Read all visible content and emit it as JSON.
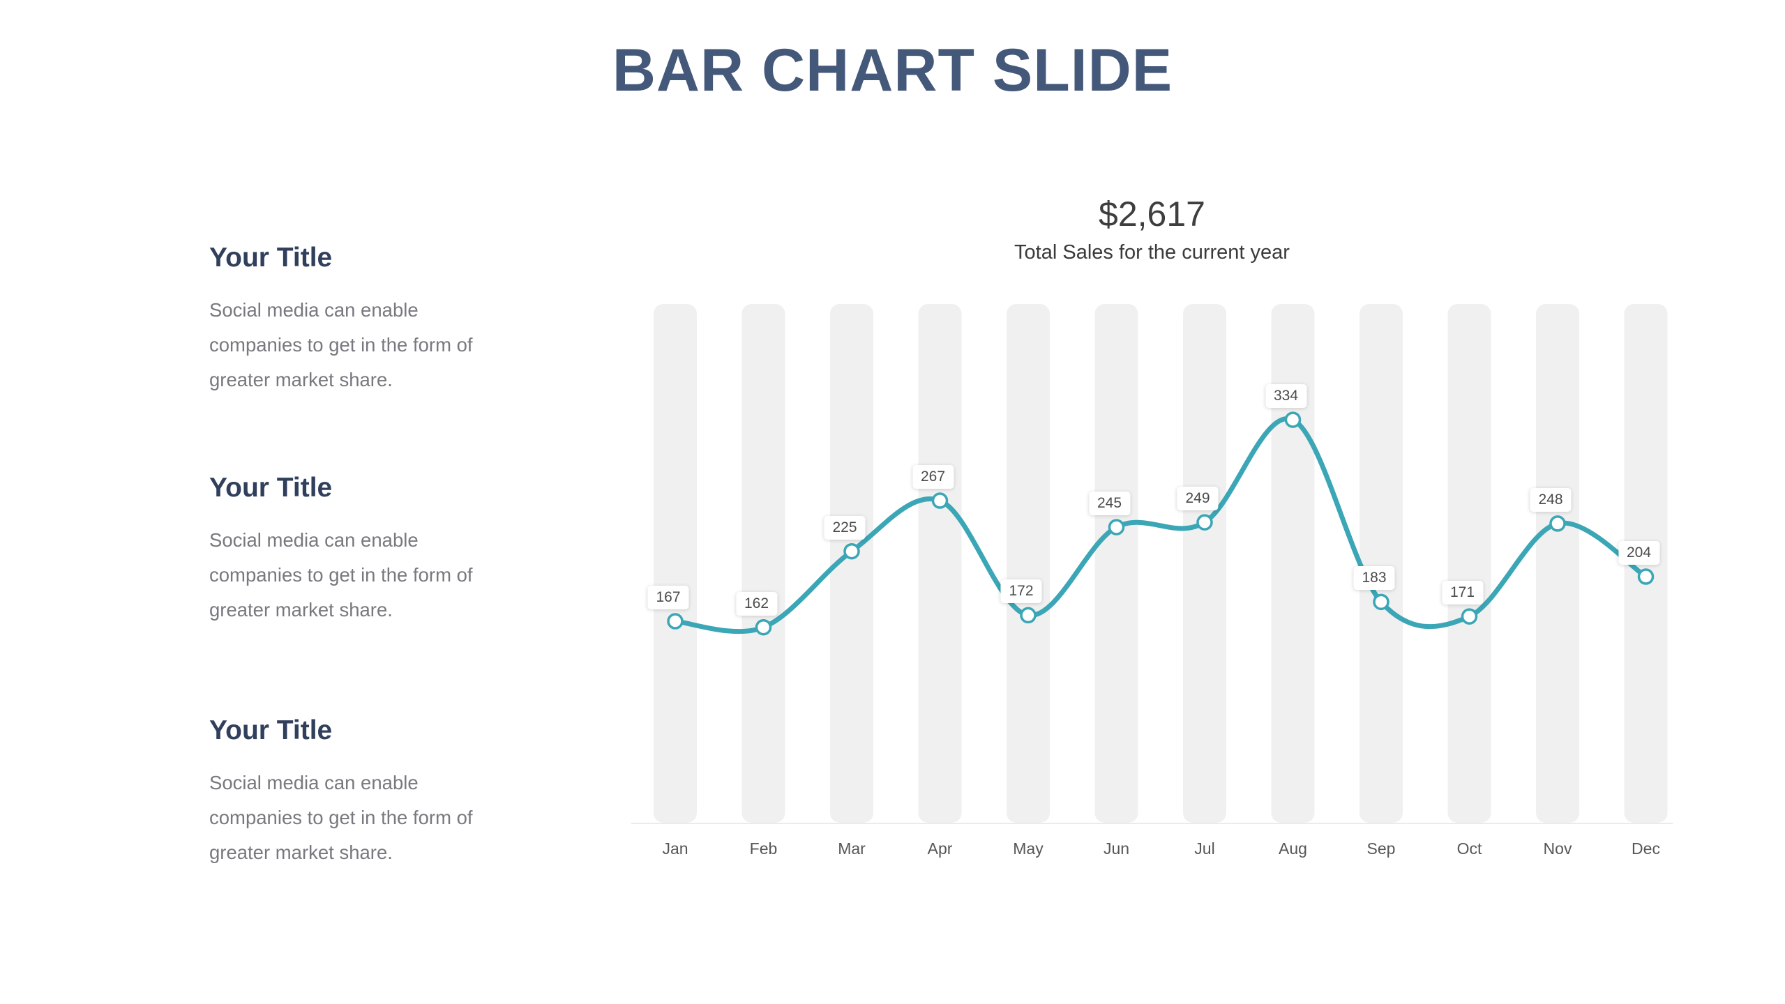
{
  "slide": {
    "title": "BAR CHART SLIDE"
  },
  "sections": [
    {
      "heading": "Your Title",
      "body": "Social media can enable companies to get in the form of greater market share."
    },
    {
      "heading": "Your Title",
      "body": "Social media can enable companies to get in the form of greater market share."
    },
    {
      "heading": "Your Title",
      "body": "Social media can enable companies to get in the form of greater market share."
    }
  ],
  "chart_data": {
    "type": "line",
    "total_label": "$2,617",
    "subtitle": "Total Sales for the current year",
    "categories": [
      "Jan",
      "Feb",
      "Mar",
      "Apr",
      "May",
      "Jun",
      "Jul",
      "Aug",
      "Sep",
      "Oct",
      "Nov",
      "Dec"
    ],
    "values": [
      167,
      162,
      225,
      267,
      172,
      245,
      249,
      334,
      183,
      171,
      248,
      204
    ],
    "ylim": [
      0,
      430
    ],
    "grid": false,
    "legend": false,
    "background_columns": true,
    "data_labels": true,
    "marker": "circle-open"
  },
  "colors": {
    "title_navy": "#44587A",
    "heading_navy": "#303F5B",
    "body_gray": "#77797F",
    "total_dark": "#3E3E3E",
    "subtitle_dark": "#3A3A3A",
    "month_gray": "#565656",
    "value_label_gray": "#4A4A4A",
    "line_teal": "#3AA6B6",
    "marker_fill": "#FFFFFF",
    "bar_gray": "#F0F0F0",
    "axis_gray": "#EBEBEB",
    "background": "#FFFFFF"
  }
}
